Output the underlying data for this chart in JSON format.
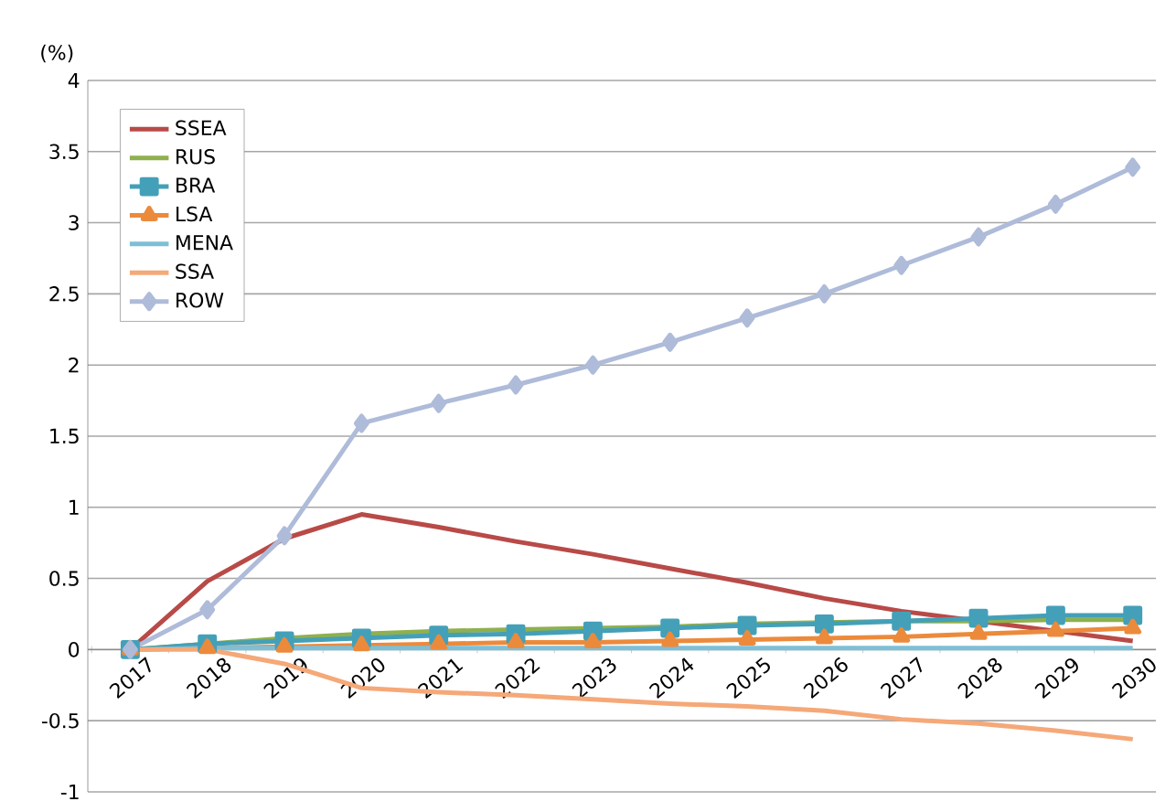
{
  "chart_data": {
    "type": "line",
    "ylabel": "(%)",
    "categories": [
      "2017",
      "2018",
      "2019",
      "2020",
      "2021",
      "2022",
      "2023",
      "2024",
      "2025",
      "2026",
      "2027",
      "2028",
      "2029",
      "2030"
    ],
    "ylim": [
      -1,
      4
    ],
    "yticks": [
      -1,
      -0.5,
      0,
      0.5,
      1,
      1.5,
      2,
      2.5,
      3,
      3.5,
      4
    ],
    "grid": "y",
    "legend": "top left",
    "line_style": "solid",
    "series": [
      {
        "name": "SSEA",
        "color": "#b84a47",
        "marker": "none",
        "values": [
          0,
          0.48,
          0.78,
          0.95,
          0.86,
          0.76,
          0.67,
          0.57,
          0.47,
          0.36,
          0.27,
          0.2,
          0.13,
          0.06
        ]
      },
      {
        "name": "RUS",
        "color": "#8fb04e",
        "marker": "none",
        "values": [
          0,
          0.04,
          0.08,
          0.11,
          0.13,
          0.14,
          0.15,
          0.16,
          0.18,
          0.19,
          0.2,
          0.2,
          0.21,
          0.21
        ]
      },
      {
        "name": "BRA",
        "color": "#44a0b8",
        "marker": "square",
        "values": [
          0,
          0.04,
          0.06,
          0.08,
          0.1,
          0.11,
          0.13,
          0.15,
          0.17,
          0.18,
          0.2,
          0.22,
          0.24,
          0.24
        ]
      },
      {
        "name": "LSA",
        "color": "#ec8a3c",
        "marker": "triangle",
        "values": [
          0,
          0.01,
          0.02,
          0.03,
          0.04,
          0.05,
          0.05,
          0.06,
          0.07,
          0.08,
          0.09,
          0.11,
          0.13,
          0.15
        ]
      },
      {
        "name": "MENA",
        "color": "#7ebfd6",
        "marker": "none",
        "values": [
          0,
          0.01,
          0.01,
          0.01,
          0.01,
          0.01,
          0.01,
          0.01,
          0.01,
          0.01,
          0.01,
          0.01,
          0.01,
          0.01
        ]
      },
      {
        "name": "SSA",
        "color": "#f5a878",
        "marker": "none",
        "values": [
          0,
          0,
          -0.1,
          -0.27,
          -0.3,
          -0.32,
          -0.35,
          -0.38,
          -0.4,
          -0.43,
          -0.49,
          -0.52,
          -0.57,
          -0.63
        ]
      },
      {
        "name": "ROW",
        "color": "#aebbd9",
        "marker": "diamond",
        "values": [
          0,
          0.28,
          0.8,
          1.59,
          1.73,
          1.86,
          2.0,
          2.16,
          2.33,
          2.5,
          2.7,
          2.9,
          3.13,
          3.39
        ]
      }
    ]
  }
}
